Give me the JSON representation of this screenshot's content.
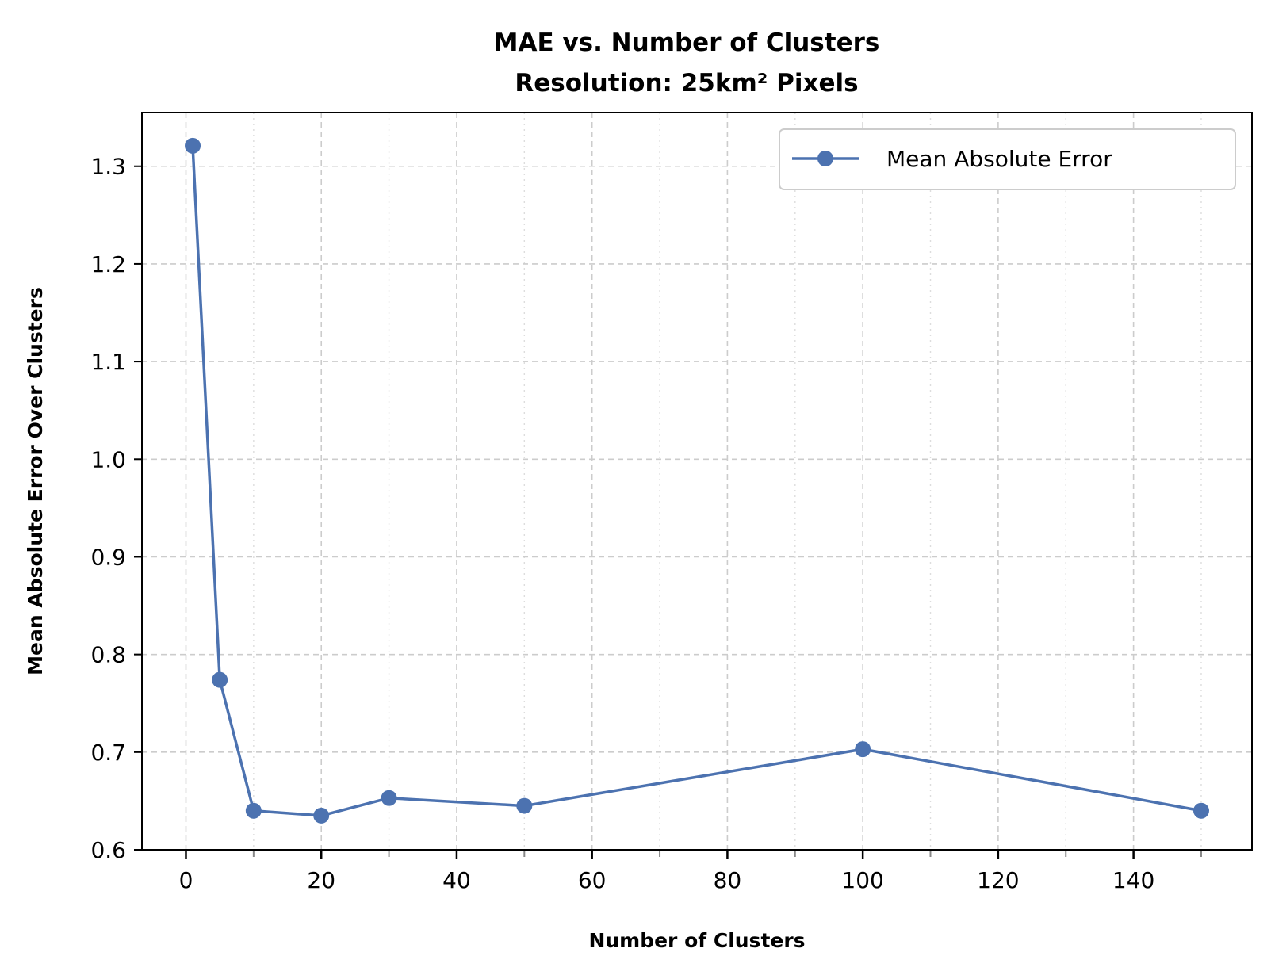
{
  "chart_data": {
    "type": "line",
    "title": "MAE vs. Number of Clusters",
    "subtitle": "Resolution: 25km² Pixels",
    "xlabel": "Number of Clusters",
    "ylabel": "Mean Absolute Error Over Clusters",
    "xlim": [
      -6.5,
      157.5
    ],
    "ylim": [
      0.6,
      1.355
    ],
    "x_ticks": [
      0,
      20,
      40,
      60,
      80,
      100,
      120,
      140
    ],
    "x_tick_labels": [
      "0",
      "20",
      "40",
      "60",
      "80",
      "100",
      "120",
      "140"
    ],
    "x_minor_ticks": [
      10,
      30,
      50,
      70,
      90,
      110,
      130,
      150
    ],
    "y_ticks": [
      0.6,
      0.7,
      0.8,
      0.9,
      1.0,
      1.1,
      1.2,
      1.3
    ],
    "y_tick_labels": [
      "0.6",
      "0.7",
      "0.8",
      "0.9",
      "1.0",
      "1.1",
      "1.2",
      "1.3"
    ],
    "grid": true,
    "legend_position": "top-right",
    "series": [
      {
        "name": "Mean Absolute Error",
        "color": "#4c72b0",
        "marker": "circle",
        "x": [
          1,
          5,
          10,
          20,
          30,
          50,
          100,
          150
        ],
        "y": [
          1.321,
          0.774,
          0.64,
          0.635,
          0.653,
          0.645,
          0.703,
          0.64
        ]
      }
    ]
  }
}
